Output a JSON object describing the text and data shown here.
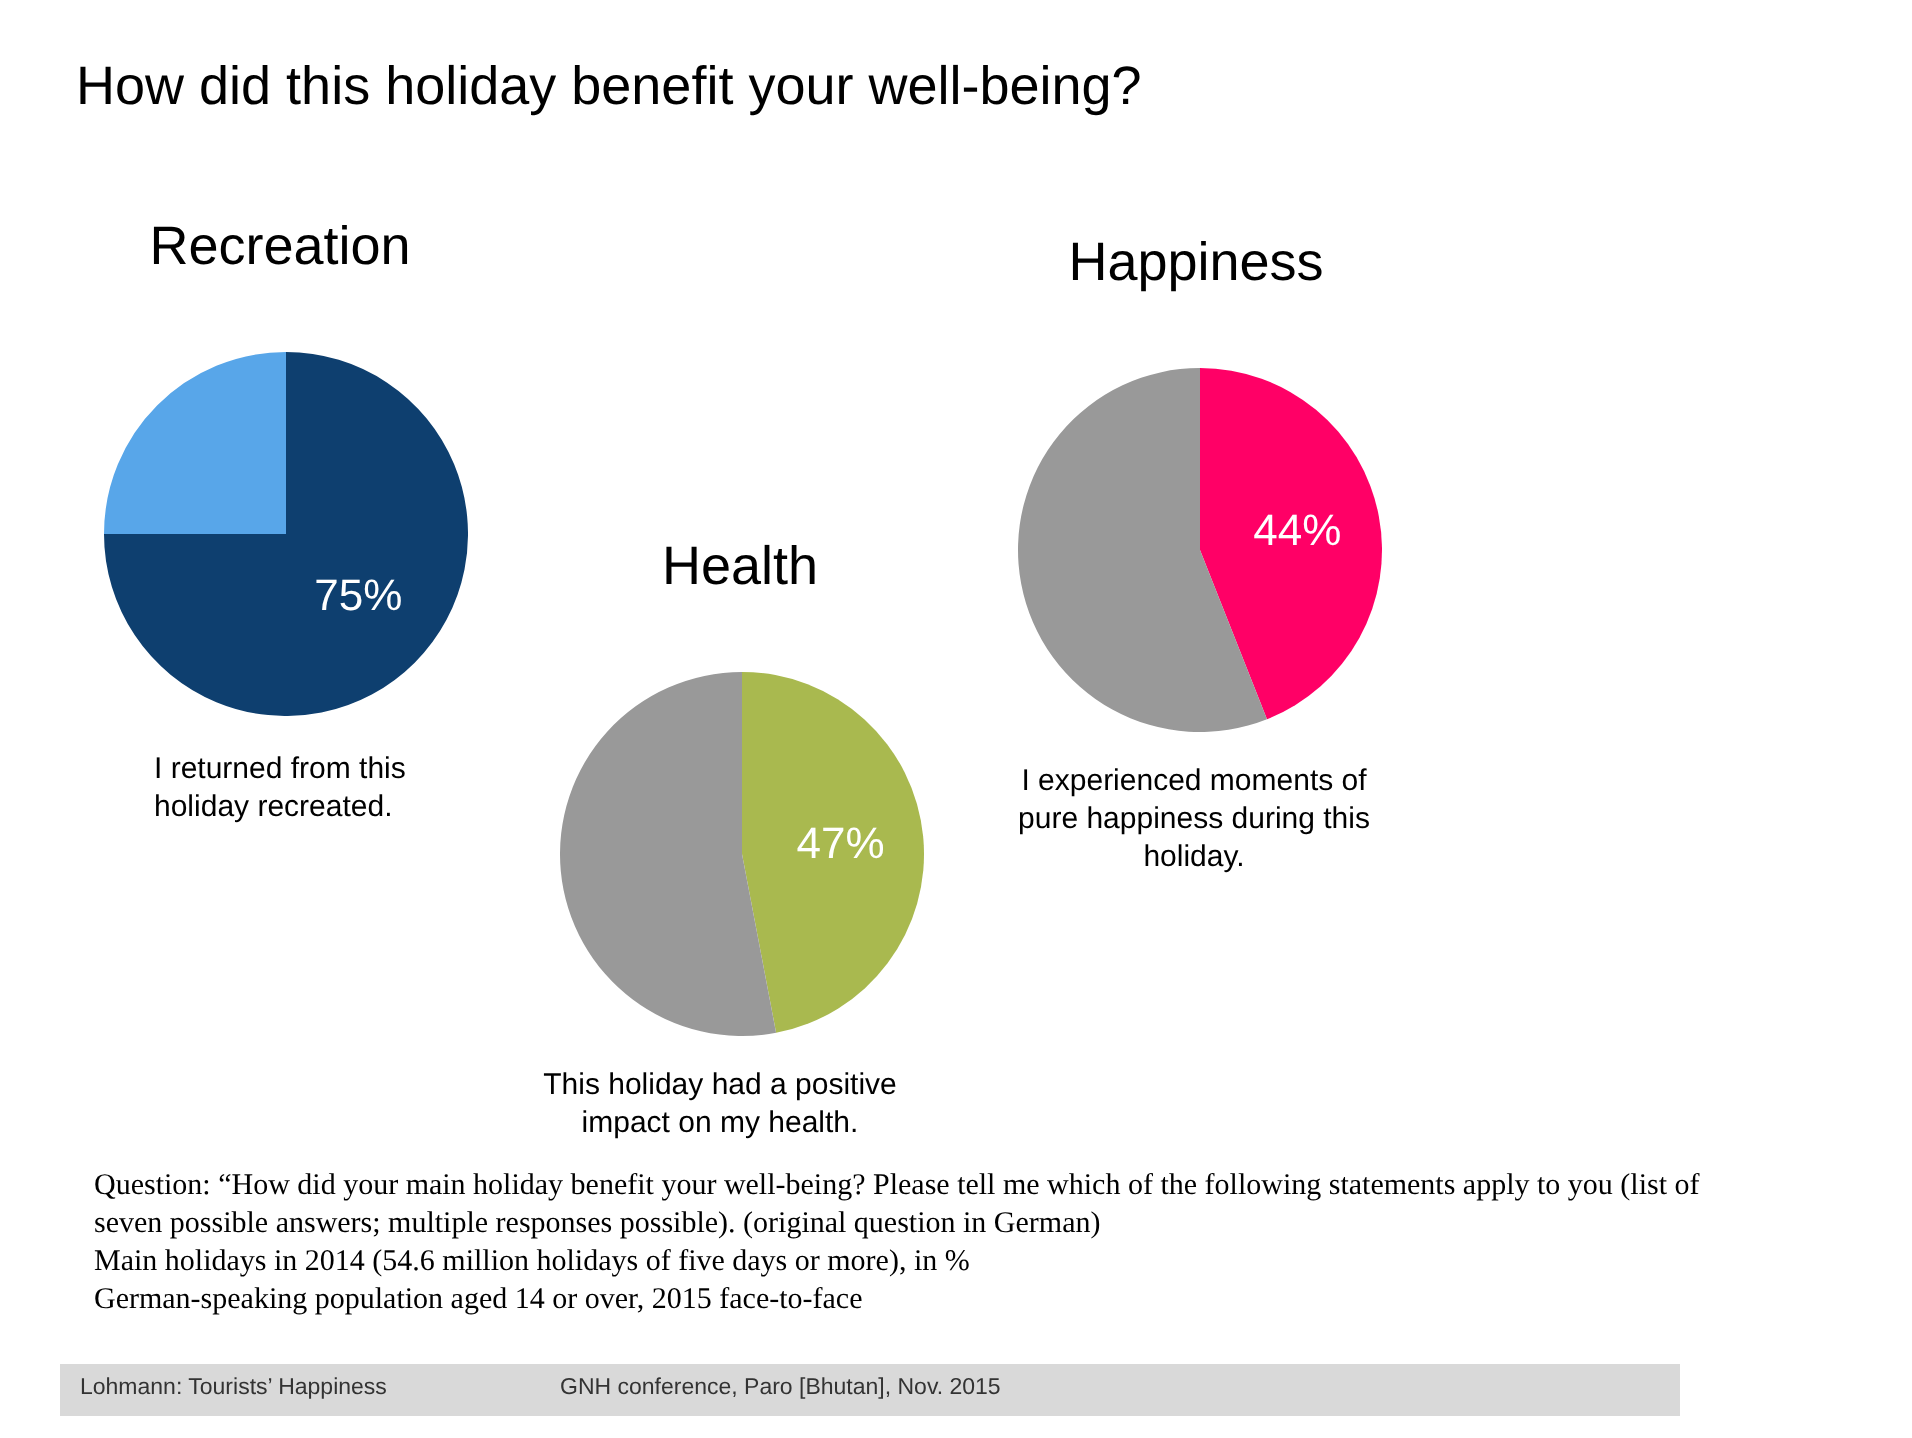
{
  "chart_data": [
    {
      "type": "other",
      "title": "How did this holiday benefit your well-being?",
      "annotations": [
        "Question: “How did your main holiday benefit your well-being? Please tell me which of the following statements apply to you (list of seven possible answers; multiple responses possible). (original question in German)",
        "Main holidays in 2014 (54.6 million holidays of five days or more), in %",
        "German-speaking population aged 14 or over, 2015 face-to-face",
        "Lohmann: Tourists’ Happiness",
        "GNH conference, Paro [Bhutan], Nov. 2015"
      ]
    },
    {
      "type": "pie",
      "title": "Recreation",
      "categories": [
        null,
        null
      ],
      "values": [
        75,
        25
      ],
      "colors": [
        "#0e3f6f",
        "#58a6e9"
      ],
      "value_labels": [
        "75%",
        null
      ],
      "annotations": [
        "I returned from this holiday recreated."
      ]
    },
    {
      "type": "pie",
      "title": "Health",
      "categories": [
        null,
        null
      ],
      "values": [
        47,
        53
      ],
      "colors": [
        "#a9b94f",
        "#999999"
      ],
      "value_labels": [
        "47%",
        null
      ],
      "annotations": [
        "This holiday had a positive impact on my health."
      ]
    },
    {
      "type": "pie",
      "title": "Happiness",
      "categories": [
        null,
        null
      ],
      "values": [
        44,
        56
      ],
      "colors": [
        "#ff0066",
        "#999999"
      ],
      "value_labels": [
        "44%",
        null
      ],
      "annotations": [
        "I experienced moments of pure happiness during this holiday."
      ]
    }
  ]
}
